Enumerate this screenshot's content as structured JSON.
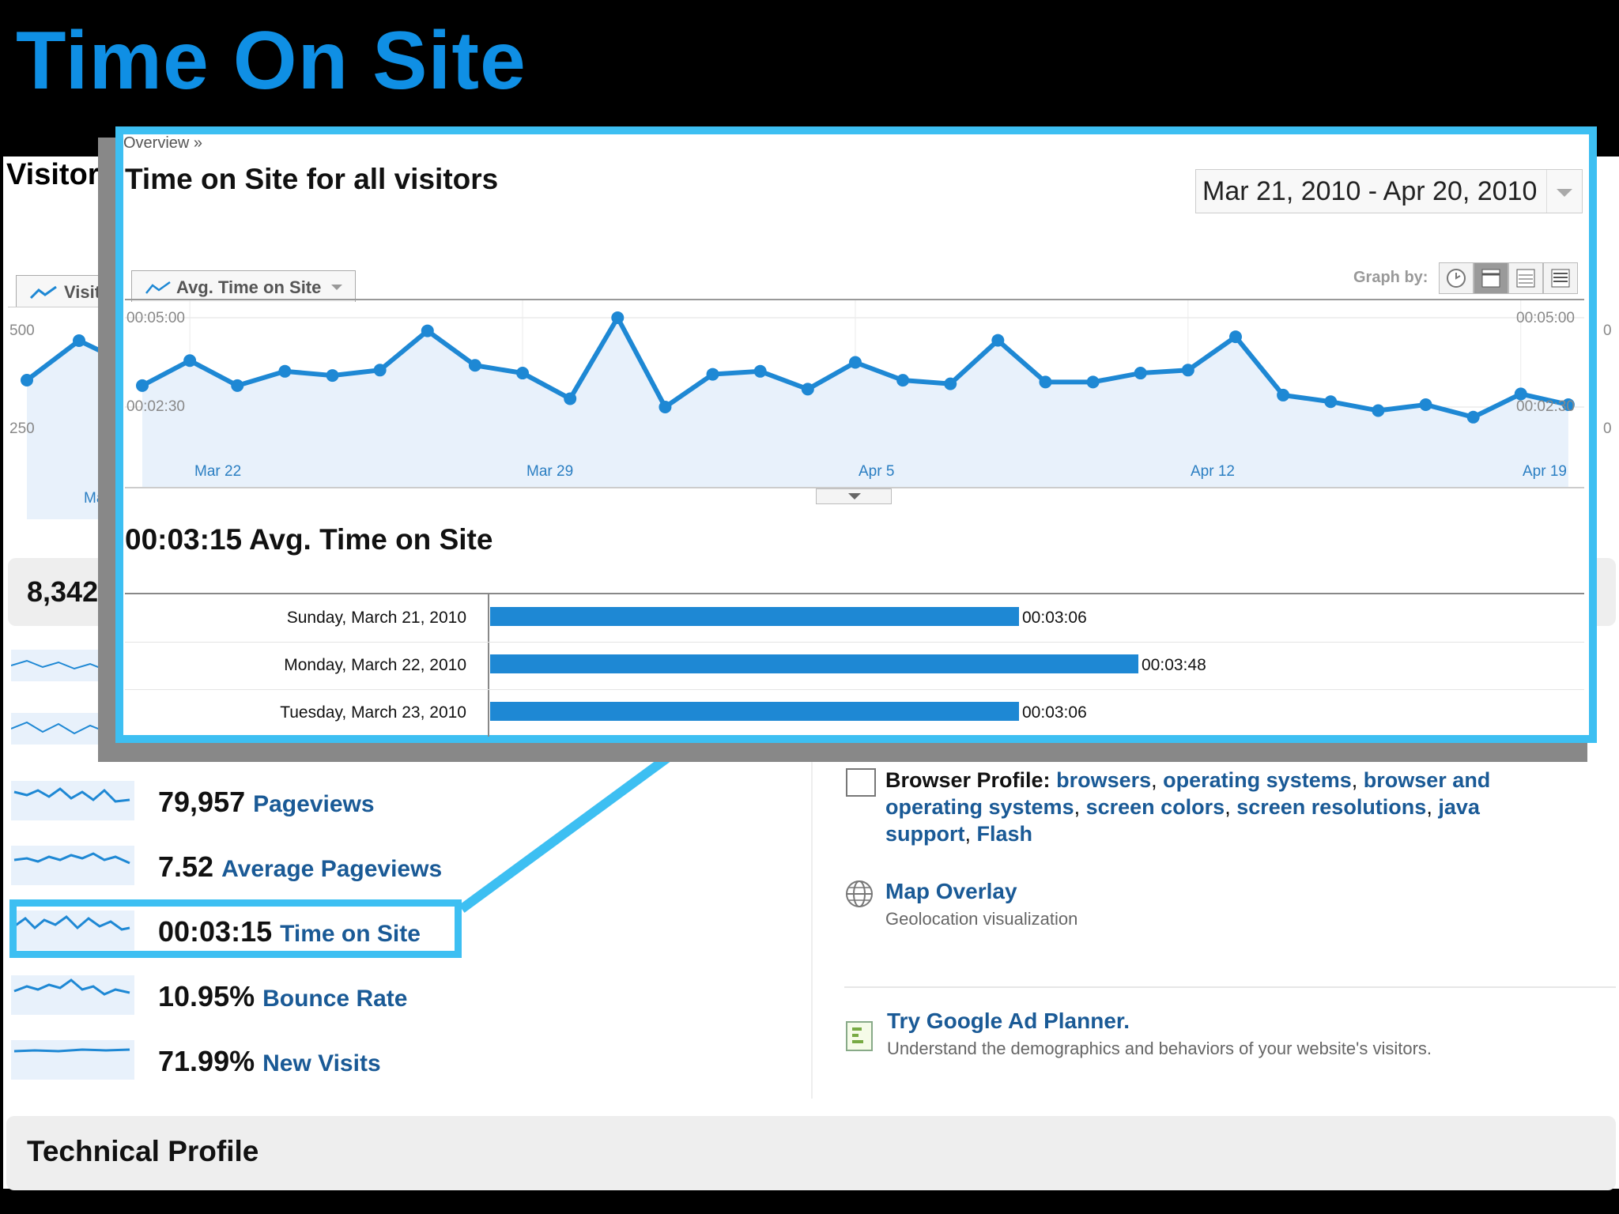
{
  "slide": {
    "title": "Time On Site"
  },
  "background_report": {
    "visitors_title": "Visitors",
    "tab_label": "Visitors",
    "y_ticks": [
      "500",
      "250"
    ],
    "right_ticks": [
      "0",
      "0"
    ],
    "x_label": "Ma",
    "summary_value": "8,342",
    "metrics": [
      {
        "value": "79,957",
        "label": "Pageviews"
      },
      {
        "value": "7.52",
        "label": "Average Pageviews"
      },
      {
        "value": "00:03:15",
        "label": "Time on Site"
      },
      {
        "value": "10.95%",
        "label": "Bounce Rate"
      },
      {
        "value": "71.99%",
        "label": "New Visits"
      }
    ],
    "browser_profile": {
      "label": "Browser Profile:",
      "links": [
        "browsers",
        "operating systems",
        "browser and operating systems",
        "screen colors",
        "screen resolutions",
        "java support",
        "Flash"
      ]
    },
    "map_overlay": {
      "title": "Map Overlay",
      "subtitle": "Geolocation visualization"
    },
    "ad_planner": {
      "title": "Try Google Ad Planner.",
      "subtitle": "Understand the demographics and behaviors of your website's visitors."
    },
    "technical_profile": "Technical Profile"
  },
  "popup": {
    "breadcrumb": "Overview »",
    "title": "Time on Site for all visitors",
    "date_range": "Mar 21, 2010 - Apr 20, 2010",
    "metric_tab": "Avg. Time on Site",
    "graph_by_label": "Graph by:",
    "y_labels_left": [
      "00:05:00",
      "00:02:30"
    ],
    "y_labels_right": [
      "00:05:00",
      "00:02:30"
    ],
    "x_labels": [
      "Mar 22",
      "Mar 29",
      "Apr 5",
      "Apr 12",
      "Apr 19"
    ],
    "summary": {
      "value": "00:03:15",
      "label": "Avg. Time on Site"
    },
    "table_rows": [
      {
        "date": "Sunday, March 21, 2010",
        "value": "00:03:06",
        "seconds": 186
      },
      {
        "date": "Monday, March 22, 2010",
        "value": "00:03:48",
        "seconds": 228
      },
      {
        "date": "Tuesday, March 23, 2010",
        "value": "00:03:06",
        "seconds": 186
      }
    ]
  },
  "colors": {
    "accent": "#3dbff2",
    "title_blue": "#0f8fe4",
    "link": "#1a5a96",
    "series": "#1e88d4",
    "bar": "#1e88d4"
  },
  "chart_data": {
    "type": "line",
    "x": [
      "Mar 21",
      "Mar 22",
      "Mar 23",
      "Mar 24",
      "Mar 25",
      "Mar 26",
      "Mar 27",
      "Mar 28",
      "Mar 29",
      "Mar 30",
      "Mar 31",
      "Apr 1",
      "Apr 2",
      "Apr 3",
      "Apr 4",
      "Apr 5",
      "Apr 6",
      "Apr 7",
      "Apr 8",
      "Apr 9",
      "Apr 10",
      "Apr 11",
      "Apr 12",
      "Apr 13",
      "Apr 14",
      "Apr 15",
      "Apr 16",
      "Apr 17",
      "Apr 18",
      "Apr 19",
      "Apr 20"
    ],
    "series": [
      {
        "values": [
          186,
          228,
          186,
          210,
          203,
          212,
          278,
          220,
          207,
          164,
          300,
          150,
          205,
          210,
          180,
          225,
          195,
          189,
          262,
          192,
          192,
          207,
          212,
          268,
          170,
          159,
          144,
          154,
          133,
          172,
          154
        ]
      }
    ],
    "ylabel": "",
    "ylim": [
      0,
      300
    ],
    "y_ticks": [
      "00:05:00",
      "00:02:30"
    ],
    "x_ticks": [
      "Mar 22",
      "Mar 29",
      "Apr 5",
      "Apr 12",
      "Apr 19"
    ],
    "grid": true
  }
}
